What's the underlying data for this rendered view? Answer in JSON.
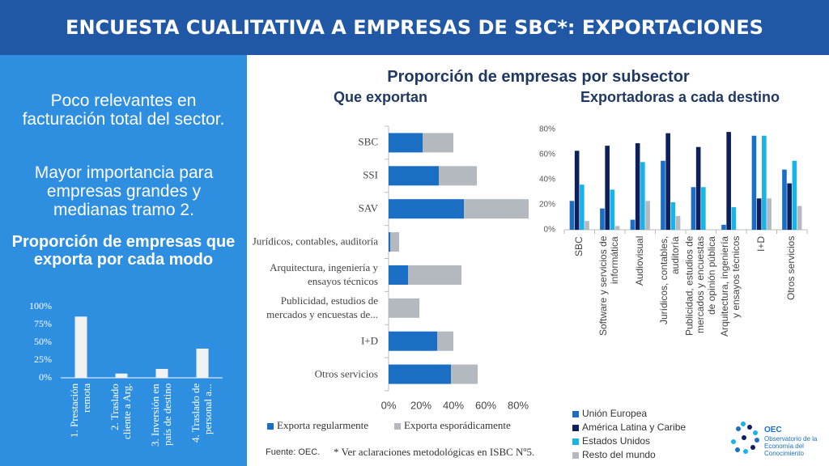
{
  "header": {
    "title": "ENCUESTA CUALITATIVA A EMPRESAS DE SBC*: EXPORTACIONES"
  },
  "left_panel": {
    "text_1": "Poco relevantes en facturación total del sector.",
    "text_2": "Mayor importancia para empresas grandes y medianas tramo 2."
  },
  "right_title": "Proporción de empresas por subsector",
  "chart_data": [
    {
      "type": "bar",
      "title": "Proporción de empresas que exporta por cada modo",
      "categories": [
        "1. Prestación remota",
        "2. Traslado cliente a Arg.",
        "3. Inversión en país de destino",
        "4. Traslado de personal a..."
      ],
      "values": [
        86,
        6,
        12.5,
        41
      ],
      "color": "#f2f2f2",
      "ylim": [
        0,
        100
      ],
      "yticks": [
        {
          "value": 0,
          "label": "0%"
        },
        {
          "value": 25,
          "label": "25%"
        },
        {
          "value": 50,
          "label": "50%"
        },
        {
          "value": 75,
          "label": "75%"
        },
        {
          "value": 100,
          "label": "100%"
        }
      ]
    },
    {
      "type": "barh",
      "stacked": true,
      "title": "Que exportan",
      "categories": [
        "SBC",
        "SSI",
        "SAV",
        "Jurídicos, contables, auditoría",
        "Arquitectura, ingeniería y ensayos técnicos",
        "Publicidad, estudios de mercados y encuestas de...",
        "I+D",
        "Otros servicios"
      ],
      "series": [
        {
          "name": "Exporta regularmente",
          "color": "#1a6fc4",
          "values": [
            21,
            31,
            46.5,
            1,
            12,
            0,
            30,
            38.5
          ]
        },
        {
          "name": "Exporta esporádicamente",
          "color": "#b3b9bf",
          "values": [
            19,
            23.5,
            40,
            5.5,
            33,
            19,
            10,
            16.5
          ]
        }
      ],
      "xlim": [
        0,
        87
      ],
      "xticks": [
        {
          "value": 0,
          "label": "0%"
        },
        {
          "value": 20,
          "label": "20%"
        },
        {
          "value": 40,
          "label": "40%"
        },
        {
          "value": 60,
          "label": "60%"
        },
        {
          "value": 80,
          "label": "80%"
        }
      ],
      "legend": "bottom"
    },
    {
      "type": "bar",
      "title": "Exportadoras a cada destino",
      "categories": [
        "SBC",
        "Software y servicios de informática",
        "Audiovisual",
        "Jurídicos, contables, auditoría",
        "Publicidad, estudios de mercados y encuestas de opinión pública",
        "Arquitectura, ingeniería y ensayos técnicos",
        "I+D",
        "Otros servicios"
      ],
      "series": [
        {
          "name": "Unión Europea",
          "color": "#1a6fc4",
          "values": [
            23,
            17,
            8,
            55,
            34,
            4,
            75,
            48
          ]
        },
        {
          "name": "América Latina y Caribe",
          "color": "#0d1f5c",
          "values": [
            63,
            67,
            69,
            77,
            66,
            78,
            25,
            37
          ]
        },
        {
          "name": "Estados Unidos",
          "color": "#18b4e8",
          "values": [
            36,
            32,
            54,
            22,
            34,
            18,
            75,
            55
          ]
        },
        {
          "name": "Resto del mundo",
          "color": "#b3b9bf",
          "values": [
            7,
            3,
            23,
            11,
            0,
            0,
            25,
            19
          ]
        }
      ],
      "ylim": [
        0,
        80
      ],
      "yticks": [
        {
          "value": 0,
          "label": "0%"
        },
        {
          "value": 20,
          "label": "20%"
        },
        {
          "value": 40,
          "label": "40%"
        },
        {
          "value": 60,
          "label": "60%"
        },
        {
          "value": 80,
          "label": "80%"
        }
      ],
      "legend": "bottom"
    }
  ],
  "footer": {
    "source": "Fuente: OEC.",
    "note": "* Ver aclaraciones metodológicas en ISBC Nº5."
  },
  "logo": {
    "acronym": "OEC",
    "name": "Observatorio de la Economía del Conocimiento"
  }
}
